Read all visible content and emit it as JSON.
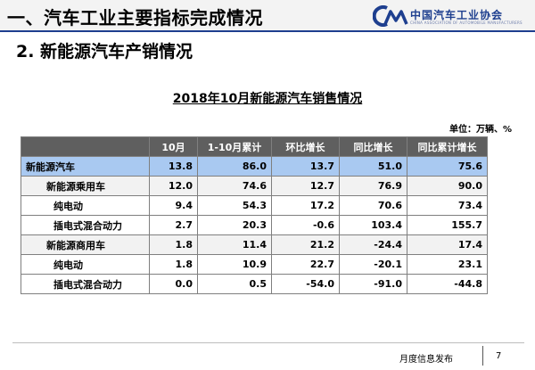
{
  "header": {
    "title": "一、汽车工业主要指标完成情况",
    "logo_text": "中国汽车工业协会",
    "logo_en": "CHINA ASSOCIATION OF AUTOMOBILE MANUFACTURERS",
    "rule_color": "#1e3f8f"
  },
  "subtitle": "2. 新能源汽车产销情况",
  "table": {
    "title": "2018年10月新能源汽车销售情况",
    "unit": "单位：万辆、%",
    "columns": [
      "",
      "10月",
      "1-10月累计",
      "环比增长",
      "同比增长",
      "同比累计增长"
    ],
    "rows": [
      {
        "name": "新能源汽车",
        "values": [
          "13.8",
          "86.0",
          "13.7",
          "51.0",
          "75.6"
        ]
      },
      {
        "name": "新能源乘用车",
        "values": [
          "12.0",
          "74.6",
          "12.7",
          "76.9",
          "90.0"
        ]
      },
      {
        "name": "纯电动",
        "values": [
          "9.4",
          "54.3",
          "17.2",
          "70.6",
          "73.4"
        ]
      },
      {
        "name": "插电式混合动力",
        "values": [
          "2.7",
          "20.3",
          "-0.6",
          "103.4",
          "155.7"
        ]
      },
      {
        "name": "新能源商用车",
        "values": [
          "1.8",
          "11.4",
          "21.2",
          "-24.4",
          "17.4"
        ]
      },
      {
        "name": "纯电动",
        "values": [
          "1.8",
          "10.9",
          "22.7",
          "-20.1",
          "23.1"
        ]
      },
      {
        "name": "插电式混合动力",
        "values": [
          "0.0",
          "0.5",
          "-54.0",
          "-91.0",
          "-44.8"
        ]
      }
    ],
    "highlight_color": "#a9c9f1",
    "header_color": "#5f5f5f"
  },
  "footer": {
    "label": "月度信息发布",
    "page": "7"
  }
}
